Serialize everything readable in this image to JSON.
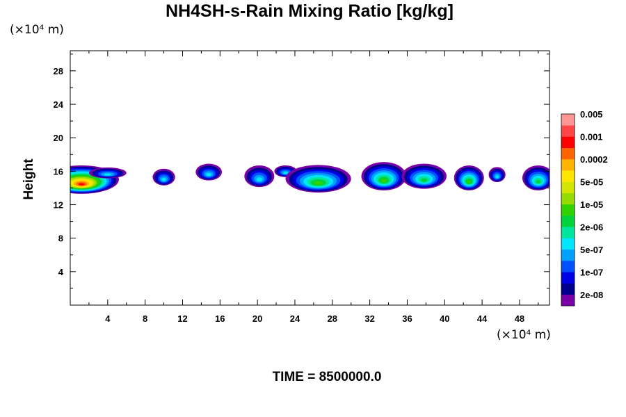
{
  "chart_data": {
    "type": "heatmap",
    "title": "NH4SH-s-Rain Mixing Ratio [kg/kg]",
    "ylabel": "Height",
    "xlabel": "",
    "x_unit": "(×10⁴ m)",
    "y_unit": "(×10⁴ m)",
    "xlim": [
      0,
      51.2
    ],
    "ylim": [
      0,
      30.4
    ],
    "x_ticks": [
      4,
      8,
      12,
      16,
      20,
      24,
      28,
      32,
      36,
      40,
      44,
      48
    ],
    "y_ticks": [
      4,
      8,
      12,
      16,
      20,
      24,
      28
    ],
    "colorbar": {
      "levels": [
        "2e-08",
        "1e-07",
        "5e-07",
        "2e-06",
        "1e-05",
        "5e-05",
        "0.0002",
        "0.001",
        "0.005"
      ],
      "colors": [
        "#7a00a8",
        "#00008c",
        "#0000e6",
        "#0050ff",
        "#00a0ff",
        "#00e6ff",
        "#00e6a0",
        "#00d23c",
        "#32d200",
        "#96dc00",
        "#d2e600",
        "#ffe600",
        "#ffb400",
        "#ff6400",
        "#ff0000",
        "#ff4646",
        "#ff9696"
      ]
    },
    "cells": [
      {
        "x": 1.2,
        "y": 15.0,
        "w": 8.0,
        "h": 3.4,
        "peak": 14
      },
      {
        "x": 4.0,
        "y": 15.8,
        "w": 4.0,
        "h": 1.3,
        "peak": 5
      },
      {
        "x": 10.0,
        "y": 15.3,
        "w": 2.4,
        "h": 2.0,
        "peak": 5
      },
      {
        "x": 14.8,
        "y": 15.9,
        "w": 2.8,
        "h": 2.0,
        "peak": 5
      },
      {
        "x": 20.2,
        "y": 15.4,
        "w": 3.2,
        "h": 2.6,
        "peak": 5
      },
      {
        "x": 23.0,
        "y": 16.0,
        "w": 2.4,
        "h": 1.4,
        "peak": 5
      },
      {
        "x": 26.5,
        "y": 15.1,
        "w": 7.0,
        "h": 3.3,
        "peak": 8
      },
      {
        "x": 33.5,
        "y": 15.4,
        "w": 4.8,
        "h": 3.4,
        "peak": 8
      },
      {
        "x": 37.8,
        "y": 15.4,
        "w": 4.8,
        "h": 3.0,
        "peak": 7
      },
      {
        "x": 42.6,
        "y": 15.2,
        "w": 3.2,
        "h": 3.0,
        "peak": 8
      },
      {
        "x": 45.6,
        "y": 15.6,
        "w": 1.8,
        "h": 1.8,
        "peak": 5
      },
      {
        "x": 50.0,
        "y": 15.2,
        "w": 3.4,
        "h": 3.0,
        "peak": 7
      }
    ]
  },
  "time_label": "TIME = 8500000.0"
}
